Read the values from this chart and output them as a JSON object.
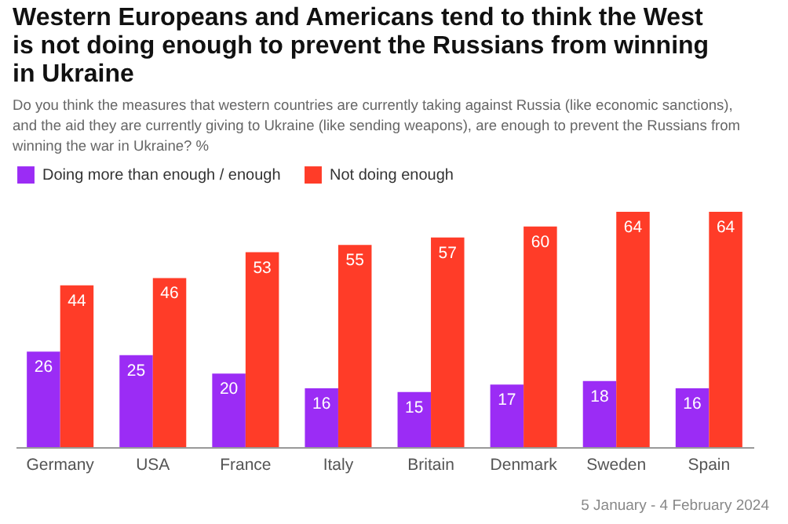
{
  "chart_data": {
    "type": "bar",
    "title": "Western Europeans and Americans tend to think the West is not doing enough to prevent the Russians from winning in Ukraine",
    "subtitle": "Do you think the measures that western countries are currently taking against Russia (like economic sanctions), and the aid they are currently giving to Ukraine (like sending weapons), are enough to prevent the Russians from winning the war in Ukraine? %",
    "categories": [
      "Germany",
      "USA",
      "France",
      "Italy",
      "Britain",
      "Denmark",
      "Sweden",
      "Spain"
    ],
    "series": [
      {
        "name": "Doing more than enough / enough",
        "color": "#9b2cf5",
        "values": [
          26,
          25,
          20,
          16,
          15,
          17,
          18,
          16
        ]
      },
      {
        "name": "Not doing enough",
        "color": "#ff3c28",
        "values": [
          44,
          46,
          53,
          55,
          57,
          60,
          64,
          64
        ]
      }
    ],
    "data_labels": true,
    "legend": "top",
    "grid": false,
    "annotations": [
      "5 January - 4 February 2024"
    ]
  }
}
